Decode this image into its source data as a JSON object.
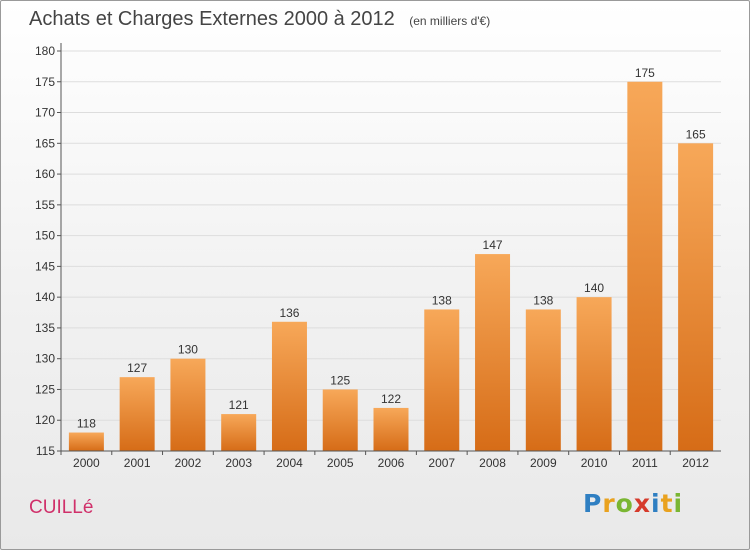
{
  "title": "Achats et Charges Externes 2000 à 2012",
  "subtitle": "(en milliers d'€)",
  "commune": "CUILLé",
  "logo": {
    "text": "Proxiti",
    "letters": [
      "P",
      "r",
      "o",
      "x",
      "i",
      "t",
      "i"
    ],
    "colors": [
      "#2f7fc2",
      "#e9a21f",
      "#7ab632",
      "#d63a2b",
      "#2f7fc2",
      "#e9a21f",
      "#7ab632"
    ]
  },
  "colors": {
    "bar_light": "#f7a859",
    "bar_dark": "#d66c17",
    "grid": "#dddddd",
    "axis": "#555555"
  },
  "chart_data": {
    "type": "bar",
    "title": "Achats et Charges Externes 2000 à 2012",
    "subtitle": "(en milliers d'€)",
    "xlabel": "",
    "ylabel": "",
    "categories": [
      "2000",
      "2001",
      "2002",
      "2003",
      "2004",
      "2005",
      "2006",
      "2007",
      "2008",
      "2009",
      "2010",
      "2011",
      "2012"
    ],
    "values": [
      118,
      127,
      130,
      121,
      136,
      125,
      122,
      138,
      147,
      138,
      140,
      175,
      165
    ],
    "ylim": [
      115,
      180
    ],
    "yticks": [
      115,
      120,
      125,
      130,
      135,
      140,
      145,
      150,
      155,
      160,
      165,
      170,
      175,
      180
    ],
    "grid": true,
    "data_labels": true
  }
}
